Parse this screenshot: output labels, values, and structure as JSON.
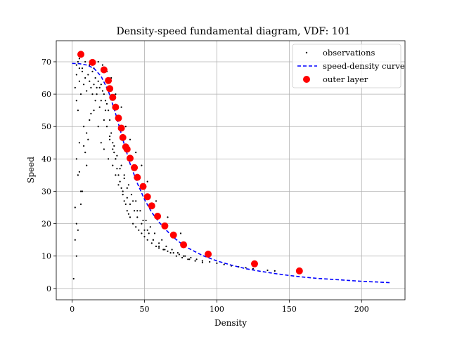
{
  "chart_data": {
    "type": "scatter",
    "title": "Density-speed fundamental diagram, VDF: 101",
    "xlabel": "Density",
    "ylabel": "Speed",
    "xlim": [
      -11,
      230
    ],
    "ylim": [
      -3.5,
      76.5
    ],
    "xticks": [
      0,
      50,
      100,
      150,
      200
    ],
    "yticks": [
      0,
      10,
      20,
      30,
      40,
      50,
      60,
      70
    ],
    "grid": true,
    "legend_position": "top-right",
    "legend": [
      {
        "label": "observations",
        "kind": "dot",
        "color": "#000000"
      },
      {
        "label": "speed-density curve",
        "kind": "dashed-line",
        "color": "#0000ff"
      },
      {
        "label": "outer layer",
        "kind": "circle",
        "color": "#ff0000"
      }
    ],
    "series": [
      {
        "name": "speed-density curve",
        "type": "line",
        "style": "dashed",
        "color": "#0000ff",
        "x": [
          0,
          5,
          10,
          15,
          20,
          25,
          30,
          35,
          40,
          45,
          50,
          55,
          60,
          65,
          70,
          75,
          80,
          90,
          100,
          110,
          120,
          130,
          140,
          150,
          160,
          170,
          180,
          190,
          200,
          210,
          220
        ],
        "y": [
          69.5,
          69.4,
          69.0,
          68.0,
          65.5,
          61.0,
          54.0,
          46.0,
          38.5,
          32.5,
          27.5,
          23.5,
          20.5,
          18.0,
          15.8,
          14.0,
          12.5,
          10.2,
          8.5,
          7.2,
          6.1,
          5.3,
          4.6,
          4.0,
          3.5,
          3.1,
          2.8,
          2.5,
          2.2,
          2.0,
          1.8
        ]
      },
      {
        "name": "outer layer",
        "type": "scatter",
        "color": "#ff0000",
        "x": [
          6,
          14,
          22,
          25,
          26,
          28,
          30,
          32,
          34,
          35,
          37,
          38,
          40,
          43,
          45,
          49,
          52,
          55,
          59,
          64,
          70,
          77,
          94,
          126,
          157
        ],
        "y": [
          72.3,
          69.8,
          67.5,
          64.2,
          61.7,
          59.0,
          56.0,
          52.6,
          49.5,
          46.6,
          43.7,
          43.0,
          40.2,
          37.3,
          34.3,
          31.5,
          28.3,
          25.5,
          22.3,
          19.3,
          16.5,
          13.5,
          10.6,
          7.6,
          5.4
        ]
      },
      {
        "name": "observations",
        "type": "scatter",
        "color": "#000000",
        "x": [
          2,
          3,
          3,
          4,
          4,
          5,
          5,
          6,
          7,
          8,
          9,
          10,
          11,
          12,
          13,
          14,
          15,
          16,
          17,
          18,
          19,
          20,
          21,
          22,
          23,
          24,
          25,
          26,
          27,
          28,
          29,
          30,
          31,
          32,
          33,
          34,
          35,
          36,
          37,
          38,
          39,
          40,
          42,
          44,
          46,
          48,
          50,
          52,
          55,
          58,
          60,
          63,
          66,
          70,
          74,
          78,
          82,
          86,
          90,
          95,
          100,
          105,
          110,
          115,
          120,
          125,
          135,
          140,
          3,
          4,
          5,
          6,
          8,
          10,
          12,
          15,
          18,
          20,
          22,
          25,
          28,
          30,
          32,
          35,
          38,
          40,
          43,
          45,
          48,
          50,
          53,
          56,
          60,
          64,
          68,
          72,
          76,
          80,
          85,
          90,
          2,
          3,
          4,
          6,
          7,
          9,
          11,
          13,
          16,
          19,
          22,
          24,
          26,
          29,
          31,
          34,
          36,
          39,
          41,
          44,
          47,
          51,
          54,
          57,
          62,
          65,
          69,
          73,
          77,
          81,
          1,
          2,
          3,
          5,
          8,
          10,
          14,
          17,
          20,
          23,
          26,
          28,
          30,
          33,
          36,
          38,
          42,
          45,
          49,
          52,
          56,
          60,
          3,
          5,
          7,
          9,
          12,
          15,
          18,
          21,
          24,
          27,
          30,
          34,
          37,
          40,
          44,
          48,
          52,
          58,
          66,
          75
        ],
        "y": [
          62,
          58,
          66,
          70,
          55,
          64,
          68,
          60,
          67,
          63,
          65,
          61,
          66,
          64,
          62,
          67,
          63,
          65,
          60,
          64,
          62,
          63,
          61,
          60,
          58,
          57,
          55,
          52,
          48,
          45,
          42,
          40,
          37,
          35,
          33,
          31,
          29,
          27,
          26,
          24,
          23,
          22,
          20,
          19,
          18,
          17,
          16,
          15,
          14,
          13,
          12.5,
          12,
          11.5,
          11,
          10.5,
          10,
          9.5,
          9,
          8.5,
          8.2,
          7.8,
          7.4,
          7.0,
          6.7,
          6.4,
          6.1,
          5.6,
          5.4,
          40,
          35,
          45,
          30,
          50,
          48,
          52,
          55,
          50,
          45,
          43,
          40,
          38,
          35,
          32,
          30,
          28,
          26,
          24,
          22,
          20,
          18,
          17,
          15,
          14,
          12,
          11,
          10,
          9.5,
          9,
          8.5,
          8,
          25,
          20,
          18,
          26,
          30,
          42,
          46,
          54,
          58,
          56,
          52,
          50,
          47,
          44,
          41,
          38,
          35,
          32,
          29,
          27,
          24,
          21,
          19,
          17,
          15,
          13,
          12,
          11,
          10,
          9,
          3,
          15,
          10,
          36,
          44,
          38,
          60,
          62,
          58,
          55,
          46,
          43,
          40,
          37,
          34,
          31,
          27,
          24,
          21,
          18,
          15,
          13,
          69,
          71,
          68,
          70,
          69,
          68,
          70,
          69,
          67,
          65,
          60,
          56,
          50,
          46,
          42,
          38,
          33,
          27,
          22,
          17
        ]
      }
    ]
  }
}
